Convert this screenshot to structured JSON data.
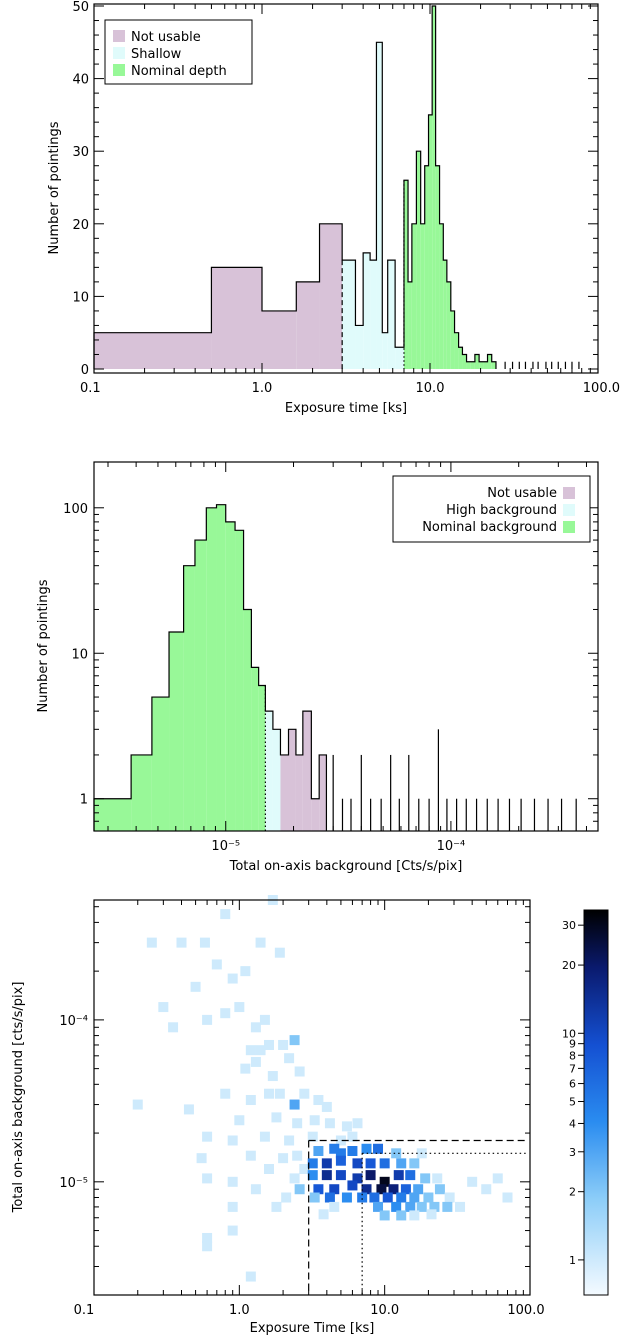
{
  "colors": {
    "not_usable": "#d8c2d8",
    "shallow": "#e0fbfb",
    "high_background": "#e0fbfb",
    "nominal": "#98f898",
    "hist_line": "#000000"
  },
  "chart_data": [
    {
      "type": "bar",
      "xlabel": "Exposure time [ks]",
      "ylabel": "Number of pointings",
      "xscale": "log",
      "xlim": [
        0.1,
        100.0
      ],
      "ylim": [
        0,
        50
      ],
      "xticks": [
        "0.1",
        "1.0",
        "10.0",
        "100.0"
      ],
      "yticks": [
        "0",
        "10",
        "20",
        "30",
        "40",
        "50"
      ],
      "legend": {
        "location": "top-left",
        "entries": [
          "Not usable",
          "Shallow",
          "Nominal depth"
        ]
      },
      "thresholds": {
        "shallow_ks": 3.0,
        "nominal_ks": 7.0
      },
      "bin_edges": [
        0.1,
        0.5,
        1.0,
        1.6,
        2.2,
        3.0,
        3.6,
        4.0,
        4.4,
        4.8,
        5.2,
        5.6,
        6.2,
        7.0,
        7.4,
        7.8,
        8.3,
        8.8,
        9.3,
        9.8,
        10.3,
        10.8,
        11.4,
        12.0,
        12.6,
        13.3,
        14.0,
        14.8,
        15.6,
        16.5,
        17.5,
        18.5,
        19.6,
        20.8,
        22.0,
        23.3,
        24.7
      ],
      "series": [
        {
          "name": "Not usable",
          "values": [
            5,
            14,
            8,
            12,
            20
          ]
        },
        {
          "name": "Shallow",
          "values": [
            15,
            6,
            16,
            15,
            45,
            5,
            15,
            3
          ]
        },
        {
          "name": "Nominal depth",
          "values": [
            26,
            12,
            20,
            30,
            20,
            28,
            35,
            50,
            28,
            20,
            15,
            12,
            8,
            5,
            3,
            2,
            1,
            1,
            2,
            1,
            1,
            2,
            1
          ]
        }
      ],
      "tail_spikes_ks": [
        28,
        31,
        34,
        37,
        41,
        44,
        49,
        53,
        58,
        64,
        70,
        77
      ]
    },
    {
      "type": "bar",
      "xlabel": "Total on-axis background [Cts/s/pix]",
      "ylabel": "Number of pointings",
      "xscale": "log",
      "yscale": "log",
      "xlim": [
        2.6e-06,
        0.00045
      ],
      "ylim": [
        0.6,
        200
      ],
      "xticks": [
        "10⁻⁵",
        "10⁻⁴"
      ],
      "yticks": [
        "1",
        "10",
        "100"
      ],
      "legend": {
        "location": "top-right",
        "entries": [
          "Not usable",
          "High background",
          "Nominal background"
        ]
      },
      "thresholds": {
        "nominal_max": 1.5e-05
      },
      "bin_edges": [
        2.6e-06,
        3.8e-06,
        4.7e-06,
        5.6e-06,
        6.5e-06,
        7.3e-06,
        8.2e-06,
        9.1e-06,
        1e-05,
        1.1e-05,
        1.2e-05,
        1.3e-05,
        1.4e-05,
        1.5e-05,
        1.62e-05,
        1.75e-05,
        1.9e-05,
        2.05e-05,
        2.2e-05,
        2.4e-05,
        2.6e-05,
        2.8e-05
      ],
      "series": [
        {
          "name": "Nominal background",
          "values": [
            1,
            2,
            5,
            14,
            40,
            60,
            100,
            105,
            80,
            70,
            20,
            8,
            6
          ]
        },
        {
          "name": "High background",
          "values": [
            4,
            3
          ]
        },
        {
          "name": "Not usable",
          "values": [
            2,
            3,
            2,
            4,
            1,
            2
          ]
        }
      ],
      "tail_spikes": [
        3e-05,
        3.3e-05,
        3.6e-05,
        4e-05,
        4.4e-05,
        4.9e-05,
        5.4e-05,
        5.9e-05,
        6.5e-05,
        7.2e-05,
        8e-05,
        8.8e-05,
        9.6e-05,
        0.000106,
        0.000117,
        0.00013,
        0.000145,
        0.000162,
        0.000182,
        0.000205,
        0.000235,
        0.00027,
        0.00031,
        0.00036
      ],
      "tail_heights": [
        2,
        1,
        1,
        2,
        1,
        1,
        2,
        1,
        2,
        1,
        1,
        3,
        1,
        1,
        1,
        1,
        1,
        1,
        1,
        1,
        1,
        1,
        1,
        1
      ]
    },
    {
      "type": "heatmap",
      "xlabel": "Exposure Time [ks]",
      "ylabel": "Total on-axis background [cts/s/pix]",
      "xscale": "log",
      "yscale": "log",
      "xlim": [
        0.1,
        100.0
      ],
      "ylim": [
        2e-06,
        0.00055
      ],
      "xticks": [
        "0.1",
        "1.0",
        "10.0",
        "100.0"
      ],
      "yticks": [
        "10⁻⁵",
        "10⁻⁴"
      ],
      "colorbar": {
        "range": [
          0.7,
          35
        ],
        "ticks": [
          "1",
          "2",
          "3",
          "4",
          "5",
          "6",
          "7",
          "8",
          "9",
          "10",
          "20",
          "30"
        ]
      },
      "boxes": {
        "dashed": {
          "x_min": 3.0,
          "y_max": 1.8e-05
        },
        "dotted": {
          "x_min": 7.0,
          "y_max": 1.5e-05
        }
      },
      "cells": [
        [
          0.25,
          0.0003,
          1
        ],
        [
          0.4,
          0.0003,
          1
        ],
        [
          0.58,
          0.0003,
          1
        ],
        [
          0.8,
          0.00045,
          1
        ],
        [
          1.7,
          0.00055,
          1
        ],
        [
          1.4,
          0.0003,
          1
        ],
        [
          0.3,
          0.00012,
          1
        ],
        [
          0.5,
          0.00016,
          1
        ],
        [
          0.7,
          0.00022,
          1
        ],
        [
          0.9,
          0.00018,
          1
        ],
        [
          1.0,
          0.00012,
          1
        ],
        [
          1.1,
          0.0002,
          1
        ],
        [
          1.9,
          0.00026,
          1
        ],
        [
          0.35,
          9e-05,
          1
        ],
        [
          0.6,
          0.0001,
          1
        ],
        [
          0.8,
          0.00011,
          1
        ],
        [
          1.3,
          9e-05,
          1
        ],
        [
          1.5,
          0.0001,
          1
        ],
        [
          1.2,
          6.5e-05,
          1
        ],
        [
          1.4,
          6.5e-05,
          1
        ],
        [
          1.6,
          7e-05,
          1
        ],
        [
          2.0,
          7e-05,
          1
        ],
        [
          2.4,
          7.5e-05,
          2
        ],
        [
          2.2,
          5.8e-05,
          1
        ],
        [
          1.1,
          5e-05,
          1
        ],
        [
          1.3,
          5.5e-05,
          1
        ],
        [
          1.7,
          4.5e-05,
          1
        ],
        [
          2.6,
          4.8e-05,
          1
        ],
        [
          0.2,
          3e-05,
          1
        ],
        [
          0.45,
          2.8e-05,
          1
        ],
        [
          0.8,
          3.5e-05,
          1
        ],
        [
          1.2,
          3.2e-05,
          1
        ],
        [
          1.6,
          3.5e-05,
          1
        ],
        [
          1.9,
          3.5e-05,
          1
        ],
        [
          2.4,
          3e-05,
          3
        ],
        [
          2.8,
          3.5e-05,
          1
        ],
        [
          3.5,
          3.2e-05,
          1
        ],
        [
          4.0,
          2.9e-05,
          1
        ],
        [
          1.0,
          2.4e-05,
          1
        ],
        [
          1.8,
          2.5e-05,
          1
        ],
        [
          2.5,
          2.3e-05,
          1
        ],
        [
          3.3,
          2.4e-05,
          1
        ],
        [
          4.2,
          2.3e-05,
          1
        ],
        [
          5.5,
          2.2e-05,
          1
        ],
        [
          6.5,
          2.3e-05,
          1
        ],
        [
          0.6,
          1.9e-05,
          1
        ],
        [
          0.9,
          1.8e-05,
          1
        ],
        [
          1.5,
          1.9e-05,
          1
        ],
        [
          2.2,
          1.8e-05,
          1
        ],
        [
          3.2,
          1.9e-05,
          1
        ],
        [
          5.0,
          1.8e-05,
          1
        ],
        [
          6.0,
          1.9e-05,
          1
        ],
        [
          0.55,
          1.4e-05,
          1
        ],
        [
          1.2,
          1.45e-05,
          1
        ],
        [
          2.0,
          1.4e-05,
          1
        ],
        [
          2.5,
          1.45e-05,
          1
        ],
        [
          3.5,
          1.55e-05,
          3
        ],
        [
          4.5,
          1.6e-05,
          5
        ],
        [
          5.0,
          1.5e-05,
          5
        ],
        [
          6.0,
          1.55e-05,
          5
        ],
        [
          7.5,
          1.6e-05,
          4
        ],
        [
          9.0,
          1.6e-05,
          6
        ],
        [
          12.0,
          1.5e-05,
          2
        ],
        [
          18.0,
          1.5e-05,
          1
        ],
        [
          1.6,
          1.2e-05,
          1
        ],
        [
          2.8,
          1.2e-05,
          1
        ],
        [
          3.2,
          1.3e-05,
          5
        ],
        [
          4.0,
          1.3e-05,
          12
        ],
        [
          5.0,
          1.35e-05,
          7
        ],
        [
          6.5,
          1.3e-05,
          10
        ],
        [
          8.0,
          1.3e-05,
          8
        ],
        [
          10.0,
          1.3e-05,
          6
        ],
        [
          13.0,
          1.3e-05,
          3
        ],
        [
          16.0,
          1.3e-05,
          2
        ],
        [
          0.6,
          1.05e-05,
          1
        ],
        [
          0.9,
          1e-05,
          1
        ],
        [
          2.4,
          1.05e-05,
          1
        ],
        [
          3.2,
          1.1e-05,
          4
        ],
        [
          4.0,
          1.1e-05,
          15
        ],
        [
          5.0,
          1.1e-05,
          10
        ],
        [
          6.5,
          1.05e-05,
          12
        ],
        [
          8.0,
          1.1e-05,
          20
        ],
        [
          10.0,
          1e-05,
          30
        ],
        [
          12.5,
          1.1e-05,
          12
        ],
        [
          15.0,
          1.1e-05,
          6
        ],
        [
          19.0,
          1.05e-05,
          2
        ],
        [
          23.0,
          1.05e-05,
          1
        ],
        [
          40.0,
          1e-05,
          1
        ],
        [
          60.0,
          1.05e-05,
          1
        ],
        [
          1.3,
          9e-06,
          1
        ],
        [
          2.6,
          9e-06,
          2
        ],
        [
          3.5,
          9e-06,
          8
        ],
        [
          4.5,
          9e-06,
          10
        ],
        [
          6.0,
          9.5e-06,
          10
        ],
        [
          7.5,
          9e-06,
          15
        ],
        [
          9.5,
          9e-06,
          25
        ],
        [
          11.5,
          9e-06,
          18
        ],
        [
          14.0,
          9e-06,
          7
        ],
        [
          17.0,
          9e-06,
          3
        ],
        [
          24.0,
          9e-06,
          2
        ],
        [
          50.0,
          9e-06,
          1
        ],
        [
          2.1,
          8e-06,
          1
        ],
        [
          3.3,
          8e-06,
          2
        ],
        [
          4.2,
          8e-06,
          6
        ],
        [
          5.5,
          8e-06,
          4
        ],
        [
          7.0,
          8e-06,
          5
        ],
        [
          8.5,
          8e-06,
          6
        ],
        [
          10.5,
          8e-06,
          8
        ],
        [
          13.0,
          8e-06,
          5
        ],
        [
          16.0,
          8e-06,
          3
        ],
        [
          20.0,
          8e-06,
          2
        ],
        [
          28.0,
          8e-06,
          1
        ],
        [
          70.0,
          8e-06,
          1
        ],
        [
          0.9,
          7e-06,
          1
        ],
        [
          1.8,
          7e-06,
          1
        ],
        [
          4.5,
          7e-06,
          1
        ],
        [
          9.0,
          7e-06,
          3
        ],
        [
          12.0,
          7e-06,
          4
        ],
        [
          15.0,
          7e-06,
          3
        ],
        [
          18.0,
          7e-06,
          2
        ],
        [
          22.0,
          7e-06,
          2
        ],
        [
          27.0,
          7e-06,
          2
        ],
        [
          33.0,
          7e-06,
          1
        ],
        [
          3.8,
          6.3e-06,
          1
        ],
        [
          10.0,
          6.2e-06,
          2
        ],
        [
          13.0,
          6.2e-06,
          2
        ],
        [
          16.0,
          6.2e-06,
          1
        ],
        [
          21.0,
          6.3e-06,
          1
        ],
        [
          0.6,
          4.5e-06,
          1
        ],
        [
          0.6,
          4e-06,
          1
        ],
        [
          0.9,
          5e-06,
          1
        ],
        [
          1.2,
          2.6e-06,
          1
        ]
      ]
    }
  ]
}
